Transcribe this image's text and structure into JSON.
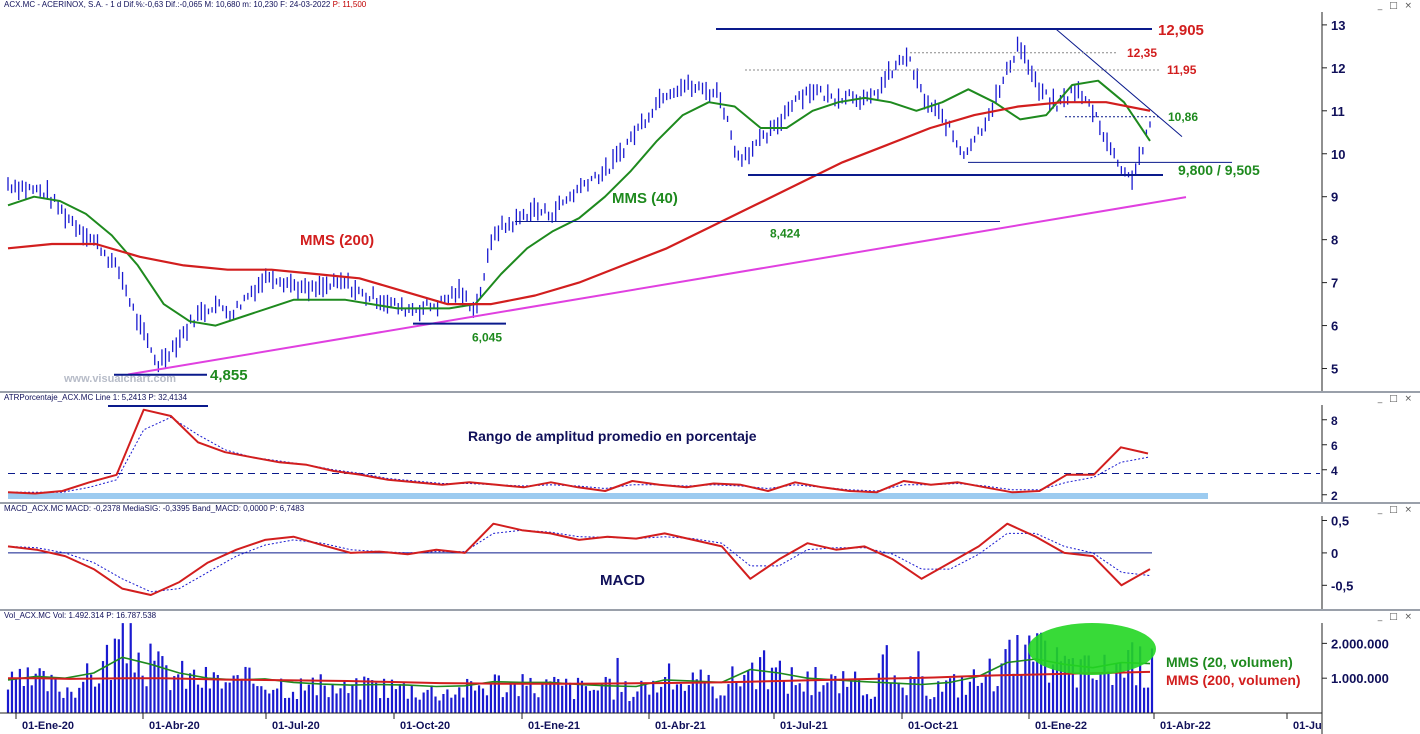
{
  "colors": {
    "price": "#1a1ad0",
    "mms40": "#1e8a1e",
    "mms200": "#d21e1e",
    "trend": "#e040e0",
    "level": "#0a1a8c",
    "atr_band": "#9ccbf0",
    "ellipse": "#22d622"
  },
  "headers": {
    "price": "ACX.MC - ACERINOX, S.A. - 1 d Dif.%:-0,63 Dif.:-0,065 M: 10,680 m: 10,230 F: 24-03-2022",
    "price_p": "P: 11,500",
    "atr": "ATRPorcentaje_ACX.MC Line 1: 5,2413 P: 32,4134",
    "macd": "MACD_ACX.MC MACD: -0,2378 MediaSIG: -0,3395 Band_MACD: 0,0000 P: 6,7483",
    "vol": "Vol_ACX.MC Vol: 1.492.314 P: 16.787.538"
  },
  "window_buttons": "_ □ ×",
  "watermark": "www.visualchart.com",
  "annotations": {
    "mms200": "MMS (200)",
    "mms40": "MMS (40)",
    "atr_title": "Rango de amplitud promedio en porcentaje",
    "macd_title": "MACD",
    "vol20": "MMS (20, volumen)",
    "vol200": "MMS (200, volumen)"
  },
  "chart_data": [
    {
      "type": "line",
      "panel": "price",
      "x_labels": [
        "01-Ene-20",
        "01-Abr-20",
        "01-Jul-20",
        "01-Oct-20",
        "01-Ene-21",
        "01-Abr-21",
        "01-Jul-21",
        "01-Oct-21",
        "01-Ene-22",
        "01-Abr-22",
        "01-Ju"
      ],
      "ylim": [
        4.5,
        13.3
      ],
      "y_ticks": [
        "5",
        "6",
        "7",
        "8",
        "9",
        "10",
        "11",
        "12",
        "13"
      ],
      "series": [
        {
          "name": "ACX.MC",
          "style": "ohlc-bars",
          "values": [
            9.3,
            9.2,
            9.1,
            8.6,
            8.2,
            7.8,
            7.2,
            6.0,
            5.1,
            5.6,
            6.2,
            6.5,
            6.3,
            6.8,
            7.2,
            7.0,
            6.8,
            6.9,
            7.0,
            6.7,
            6.6,
            6.4,
            6.4,
            6.5,
            6.8,
            6.4,
            8.2,
            8.4,
            8.7,
            8.6,
            9.0,
            9.4,
            9.6,
            10.2,
            10.8,
            11.4,
            11.6,
            11.5,
            11.4,
            9.9,
            10.2,
            10.6,
            11.3,
            11.5,
            11.3,
            11.4,
            11.2,
            11.8,
            12.3,
            11.2,
            10.8,
            10.0,
            10.6,
            11.5,
            12.6,
            11.5,
            11.1,
            11.5,
            11.0,
            10.0,
            9.4,
            10.6
          ]
        },
        {
          "name": "MMS (40)",
          "values": [
            8.8,
            9.0,
            8.9,
            8.6,
            8.1,
            7.4,
            6.5,
            6.1,
            6.0,
            6.2,
            6.4,
            6.6,
            6.6,
            6.6,
            6.5,
            6.4,
            6.4,
            6.4,
            6.5,
            7.2,
            7.8,
            8.2,
            8.5,
            9.0,
            9.6,
            10.3,
            10.9,
            11.2,
            11.1,
            10.6,
            10.6,
            11.0,
            11.2,
            11.3,
            11.2,
            11.0,
            11.2,
            11.5,
            11.2,
            10.8,
            10.9,
            11.6,
            11.7,
            11.2,
            10.3
          ]
        },
        {
          "name": "MMS (200)",
          "values": [
            7.8,
            7.9,
            7.9,
            7.6,
            7.4,
            7.3,
            7.3,
            7.2,
            7.1,
            6.8,
            6.5,
            6.5,
            6.7,
            7.0,
            7.4,
            7.8,
            8.3,
            8.8,
            9.3,
            9.8,
            10.2,
            10.6,
            10.9,
            11.1,
            11.2,
            11.2,
            11.0
          ]
        },
        {
          "name": "Trend line",
          "values": [
            4.86,
            8.99
          ]
        }
      ],
      "levels": [
        {
          "label": "12,905",
          "value": 12.905
        },
        {
          "label": "12,35",
          "value": 12.35
        },
        {
          "label": "11,95",
          "value": 11.95
        },
        {
          "label": "10,86",
          "value": 10.86
        },
        {
          "label": "9,800 / 9,505",
          "value": 9.8,
          "value2": 9.505
        },
        {
          "label": "8,424",
          "value": 8.424
        },
        {
          "label": "6,045",
          "value": 6.045
        },
        {
          "label": "4,855",
          "value": 4.855
        }
      ]
    },
    {
      "type": "line",
      "panel": "atr",
      "ylim": [
        1.5,
        9.5
      ],
      "y_ticks": [
        "2",
        "4",
        "6",
        "8"
      ],
      "reference": 3.7,
      "series": [
        {
          "name": "ATRPorcentaje",
          "values": [
            2.2,
            2.1,
            2.3,
            3.0,
            3.6,
            8.8,
            8.3,
            6.2,
            5.4,
            5.0,
            4.6,
            4.4,
            3.9,
            3.6,
            3.2,
            3.0,
            2.8,
            3.0,
            2.8,
            2.6,
            3.0,
            2.6,
            2.3,
            3.1,
            2.8,
            2.6,
            2.9,
            2.8,
            2.3,
            3.0,
            2.6,
            2.3,
            2.2,
            3.1,
            2.8,
            3.0,
            2.6,
            2.2,
            2.3,
            3.6,
            3.6,
            5.8,
            5.3
          ]
        },
        {
          "name": "Signal",
          "values": [
            2.2,
            2.2,
            2.2,
            2.6,
            3.2,
            7.2,
            8.2,
            6.8,
            5.6,
            5.0,
            4.7,
            4.4,
            4.0,
            3.7,
            3.3,
            3.1,
            2.9,
            2.9,
            2.8,
            2.7,
            2.8,
            2.7,
            2.5,
            2.8,
            2.8,
            2.7,
            2.8,
            2.7,
            2.5,
            2.8,
            2.6,
            2.4,
            2.3,
            2.8,
            2.8,
            2.9,
            2.7,
            2.4,
            2.4,
            3.0,
            3.4,
            4.6,
            5.0
          ]
        }
      ]
    },
    {
      "type": "line",
      "panel": "macd",
      "ylim": [
        -0.85,
        0.6
      ],
      "y_ticks": [
        "0,5",
        "0",
        "-0,5"
      ],
      "series": [
        {
          "name": "MACD",
          "values": [
            0.1,
            0.05,
            -0.05,
            -0.25,
            -0.55,
            -0.65,
            -0.45,
            -0.15,
            0.05,
            0.2,
            0.25,
            0.12,
            0.0,
            0.02,
            -0.02,
            0.05,
            0.0,
            0.45,
            0.35,
            0.3,
            0.2,
            0.25,
            0.22,
            0.3,
            0.2,
            0.1,
            -0.4,
            -0.1,
            0.15,
            0.05,
            0.1,
            -0.1,
            -0.4,
            -0.15,
            0.1,
            0.45,
            0.25,
            0.0,
            -0.05,
            -0.5,
            -0.25
          ]
        },
        {
          "name": "MediaSIG",
          "values": [
            0.1,
            0.08,
            0.0,
            -0.15,
            -0.4,
            -0.6,
            -0.55,
            -0.3,
            -0.05,
            0.12,
            0.2,
            0.15,
            0.05,
            0.02,
            0.0,
            0.02,
            0.02,
            0.3,
            0.35,
            0.32,
            0.25,
            0.24,
            0.22,
            0.25,
            0.22,
            0.15,
            -0.2,
            -0.2,
            0.05,
            0.08,
            0.08,
            -0.02,
            -0.25,
            -0.25,
            -0.02,
            0.3,
            0.3,
            0.1,
            0.0,
            -0.3,
            -0.35
          ]
        }
      ]
    },
    {
      "type": "bar",
      "panel": "volume",
      "ylim": [
        0,
        2700000
      ],
      "y_ticks": [
        "2.000.000",
        "1.000.000"
      ],
      "series": [
        {
          "name": "Vol",
          "values": [
            900000,
            1050000,
            780000,
            1200000,
            2300000,
            1500000,
            1200000,
            1050000,
            950000,
            1100000,
            880000,
            820000,
            760000,
            900000,
            800000,
            720000,
            760000,
            1000000,
            850000,
            900000,
            820000,
            780000,
            700000,
            1100000,
            950000,
            850000,
            1500000,
            1200000,
            1000000,
            950000,
            900000,
            850000,
            800000,
            900000,
            1100000,
            1700000,
            1800000,
            1500000,
            1300000,
            1600000,
            1450000
          ]
        },
        {
          "name": "MMS (20, volumen)",
          "values": [
            950000,
            1050000,
            1000000,
            1150000,
            1600000,
            1400000,
            1150000,
            1000000,
            950000,
            980000,
            880000,
            830000,
            800000,
            820000,
            800000,
            760000,
            780000,
            900000,
            880000,
            880000,
            820000,
            780000,
            760000,
            950000,
            920000,
            880000,
            1250000,
            1150000,
            1000000,
            950000,
            900000,
            860000,
            820000,
            880000,
            1050000,
            1450000,
            1550000,
            1400000,
            1300000,
            1450000,
            1420000
          ]
        },
        {
          "name": "MMS (200, volumen)",
          "values": [
            1000000,
            1000000,
            980000,
            990000,
            1000000,
            1000000,
            980000,
            960000,
            950000,
            940000,
            930000,
            920000,
            900000,
            880000,
            860000,
            850000,
            840000,
            840000,
            840000,
            845000,
            850000,
            860000,
            870000,
            880000,
            900000,
            920000,
            940000,
            960000,
            980000,
            1000000,
            1020000,
            1050000,
            1080000,
            1100000,
            1120000,
            1140000,
            1160000,
            1180000
          ]
        }
      ]
    }
  ]
}
